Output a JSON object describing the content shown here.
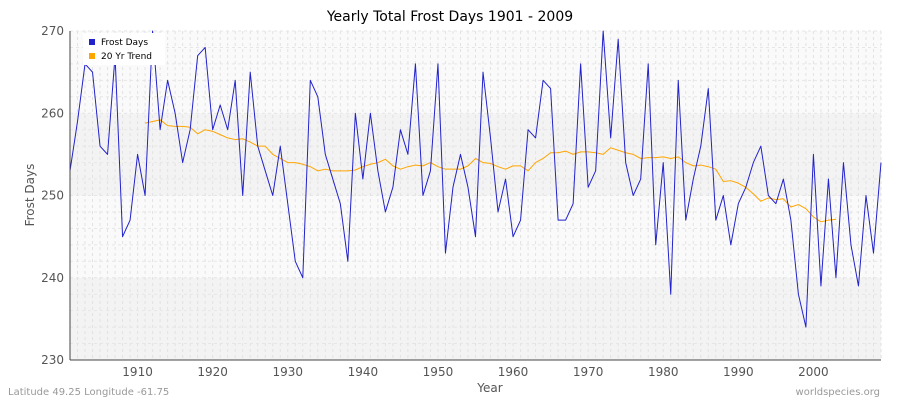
{
  "chart_data": {
    "type": "line",
    "title": "Yearly Total Frost Days 1901 - 2009",
    "xlabel": "Year",
    "ylabel": "Frost Days",
    "xlim": [
      1901,
      2009
    ],
    "ylim": [
      230,
      270
    ],
    "xticks": [
      1910,
      1920,
      1930,
      1940,
      1950,
      1960,
      1970,
      1980,
      1990,
      2000
    ],
    "yticks": [
      230,
      240,
      250,
      260,
      270
    ],
    "grid": true,
    "legend_position": "top-left",
    "series": [
      {
        "name": "Frost Days",
        "color": "#2222cc",
        "x_start": 1901,
        "values": [
          253,
          259,
          266,
          265,
          256,
          255,
          267,
          245,
          247,
          255,
          250,
          270,
          258,
          264,
          260,
          254,
          258,
          267,
          268,
          258,
          261,
          258,
          264,
          250,
          265,
          256,
          253,
          250,
          256,
          249,
          242,
          240,
          264,
          262,
          255,
          252,
          249,
          242,
          260,
          252,
          260,
          253,
          248,
          251,
          258,
          255,
          266,
          250,
          253,
          266,
          243,
          251,
          255,
          251,
          245,
          265,
          257,
          248,
          252,
          245,
          247,
          258,
          257,
          264,
          263,
          247,
          247,
          249,
          266,
          251,
          253,
          270,
          257,
          269,
          254,
          250,
          252,
          266,
          244,
          254,
          238,
          264,
          247,
          252,
          256,
          263,
          247,
          250,
          244,
          249,
          251,
          254,
          256,
          250,
          249,
          252,
          247,
          238,
          234,
          255,
          239,
          252,
          240,
          254,
          244,
          239,
          250,
          243,
          254
        ]
      },
      {
        "name": "20 Yr Trend",
        "color": "#ffa500",
        "x_start": 1911,
        "values": [
          258.8,
          259.0,
          259.2,
          258.5,
          258.4,
          258.4,
          258.3,
          257.5,
          258.0,
          257.8,
          257.4,
          257.0,
          256.8,
          256.9,
          256.5,
          256.0,
          256.0,
          255.0,
          254.5,
          254.0,
          254.0,
          253.8,
          253.5,
          253.0,
          253.2,
          253.0,
          253.0,
          253.0,
          253.1,
          253.5,
          253.8,
          254.0,
          254.4,
          253.6,
          253.2,
          253.5,
          253.7,
          253.6,
          254.0,
          253.5,
          253.2,
          253.2,
          253.2,
          253.6,
          254.5,
          254.0,
          253.9,
          253.5,
          253.2,
          253.6,
          253.6,
          253.0,
          254.0,
          254.5,
          255.2,
          255.2,
          255.4,
          255.0,
          255.3,
          255.3,
          255.2,
          255.0,
          255.8,
          255.5,
          255.2,
          255.0,
          254.5,
          254.6,
          254.6,
          254.7,
          254.5,
          254.7,
          254.0,
          253.6,
          253.7,
          253.5,
          253.2,
          251.7,
          251.8,
          251.5,
          251.0,
          250.2,
          249.3,
          249.7,
          249.5,
          249.6,
          248.6,
          248.9,
          248.4,
          247.4,
          246.8,
          247.0,
          247.1
        ]
      }
    ]
  },
  "footer": {
    "location": "Latitude 49.25 Longitude -61.75",
    "source": "worldspecies.org"
  }
}
